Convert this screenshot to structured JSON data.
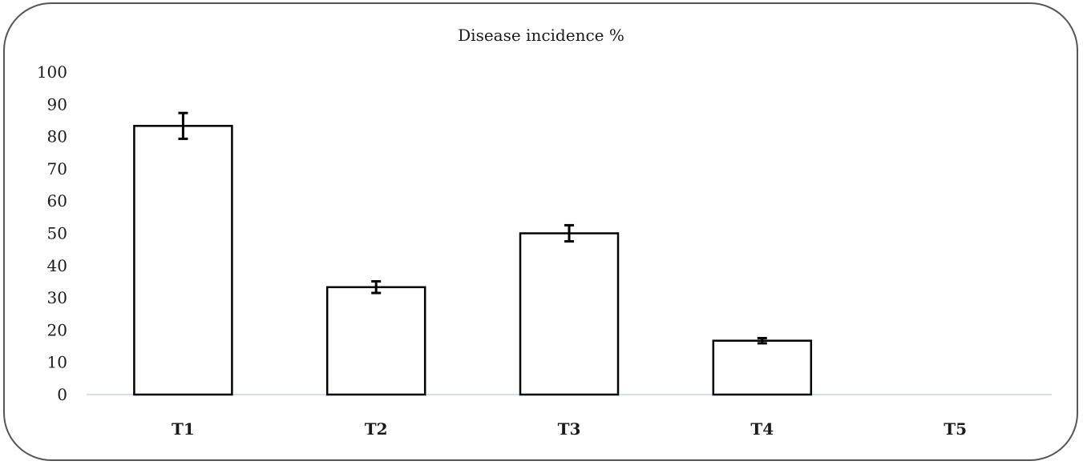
{
  "chart_data": {
    "type": "bar",
    "title": "Disease incidence %",
    "xlabel": "",
    "ylabel": "",
    "categories": [
      "T1",
      "T2",
      "T3",
      "T4",
      "T5"
    ],
    "values": [
      83.3,
      33.3,
      50.0,
      16.7,
      0
    ],
    "errors": [
      4.0,
      1.8,
      2.5,
      0.8,
      0
    ],
    "ylim": [
      0,
      100
    ],
    "yticks": [
      0,
      10,
      20,
      30,
      40,
      50,
      60,
      70,
      80,
      90,
      100
    ],
    "grid": false,
    "legend": "none",
    "bar_fill": "#ffffff",
    "bar_stroke": "#000000",
    "axis_color": "#cfe0f0"
  }
}
